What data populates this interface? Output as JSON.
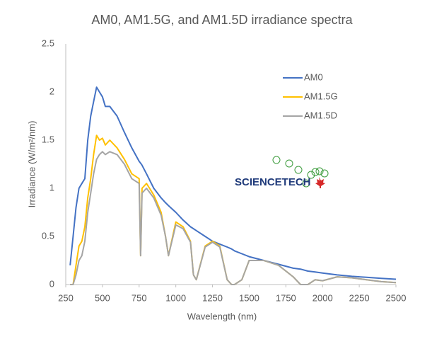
{
  "chart_data": {
    "type": "line",
    "title": "AM0, AM1.5G, and AM1.5D irradiance spectra",
    "x_label": "Wavelength (nm)",
    "y_label": "Irradiance (W/m²/nm)",
    "logo": "SCIENCETECH",
    "legend": "upper right",
    "grid": false,
    "xlim": [
      250,
      2500
    ],
    "xticks": [
      250,
      500,
      750,
      1000,
      1250,
      1500,
      1750,
      2000,
      2250,
      2500
    ],
    "ylim": [
      0,
      2.5
    ],
    "yticks": [
      0,
      0.5,
      1,
      1.5,
      2,
      2.5
    ],
    "x": [
      280,
      300,
      320,
      340,
      360,
      380,
      400,
      420,
      440,
      460,
      480,
      500,
      520,
      550,
      600,
      650,
      700,
      750,
      760,
      770,
      800,
      850,
      900,
      930,
      950,
      1000,
      1050,
      1100,
      1120,
      1140,
      1200,
      1250,
      1300,
      1350,
      1380,
      1400,
      1450,
      1500,
      1600,
      1700,
      1800,
      1850,
      1900,
      1950,
      2000,
      2100,
      2200,
      2300,
      2400,
      2500
    ],
    "series": [
      {
        "name": "AM0",
        "color": "#4472c4",
        "values": [
          0.2,
          0.5,
          0.8,
          1.0,
          1.05,
          1.1,
          1.5,
          1.75,
          1.9,
          2.05,
          2.0,
          1.95,
          1.85,
          1.85,
          1.75,
          1.58,
          1.42,
          1.28,
          1.26,
          1.24,
          1.15,
          1.0,
          0.9,
          0.85,
          0.82,
          0.75,
          0.67,
          0.6,
          0.58,
          0.56,
          0.5,
          0.45,
          0.42,
          0.39,
          0.37,
          0.35,
          0.32,
          0.29,
          0.25,
          0.21,
          0.17,
          0.16,
          0.14,
          0.13,
          0.12,
          0.1,
          0.085,
          0.075,
          0.065,
          0.055
        ]
      },
      {
        "name": "AM1.5G",
        "color": "#ffc000",
        "values": [
          0,
          0,
          0.2,
          0.4,
          0.45,
          0.6,
          0.9,
          1.1,
          1.35,
          1.55,
          1.5,
          1.52,
          1.45,
          1.5,
          1.42,
          1.3,
          1.15,
          1.1,
          0.3,
          1.0,
          1.05,
          0.93,
          0.75,
          0.5,
          0.3,
          0.65,
          0.6,
          0.45,
          0.1,
          0.05,
          0.4,
          0.45,
          0.4,
          0.05,
          0,
          0,
          0.05,
          0.25,
          0.25,
          0.2,
          0.08,
          0,
          0,
          0.05,
          0.04,
          0.08,
          0.07,
          0.05,
          0.03,
          0.02
        ]
      },
      {
        "name": "AM1.5D",
        "color": "#a5a5a5",
        "values": [
          0,
          0,
          0.1,
          0.25,
          0.3,
          0.45,
          0.75,
          0.95,
          1.15,
          1.3,
          1.35,
          1.38,
          1.35,
          1.38,
          1.35,
          1.25,
          1.1,
          1.05,
          0.3,
          0.95,
          1.0,
          0.9,
          0.72,
          0.5,
          0.3,
          0.62,
          0.58,
          0.44,
          0.1,
          0.05,
          0.39,
          0.44,
          0.39,
          0.05,
          0,
          0,
          0.05,
          0.25,
          0.25,
          0.2,
          0.08,
          0,
          0,
          0.05,
          0.04,
          0.08,
          0.07,
          0.05,
          0.03,
          0.02
        ]
      }
    ]
  }
}
